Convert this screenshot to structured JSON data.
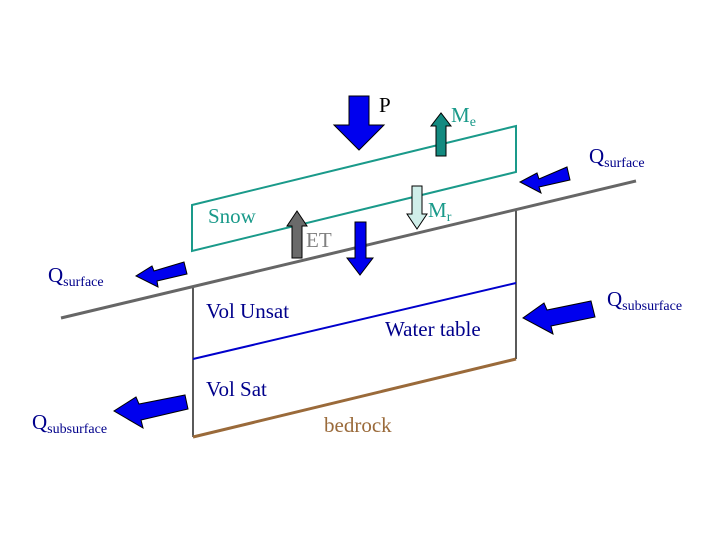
{
  "labels": {
    "precip": "P",
    "melt_evap_base": "M",
    "melt_evap_sub": "e",
    "melt_runoff_base": "M",
    "melt_runoff_sub": "r",
    "snow": "Snow",
    "et": "ET",
    "q_surface_in_base": "Q",
    "q_surface_in_sub": "surface",
    "q_surface_out_base": "Q",
    "q_surface_out_sub": "surface",
    "q_subsurface_in_base": "Q",
    "q_subsurface_in_sub": "subsurface",
    "q_subsurface_out_base": "Q",
    "q_subsurface_out_sub": "subsurface",
    "vol_unsat": "Vol Unsat",
    "water_table": "Water table",
    "vol_sat": "Vol Sat",
    "bedrock": "bedrock"
  },
  "colors": {
    "flux_arrow": "#0000ee",
    "snow_outline": "#1a9a8a",
    "melt_evap_arrow": "#138a80",
    "melt_runoff_arrow": "#cfeee9",
    "et_arrow": "#6a6a6a",
    "ground_surface": "#666666",
    "water_table": "#0000cc",
    "bedrock": "#9a6a3a",
    "text_blue": "#00008b",
    "text_teal": "#1a9a8a",
    "text_gray": "#808080",
    "text_brown": "#9a6a3a",
    "black": "#000000"
  }
}
